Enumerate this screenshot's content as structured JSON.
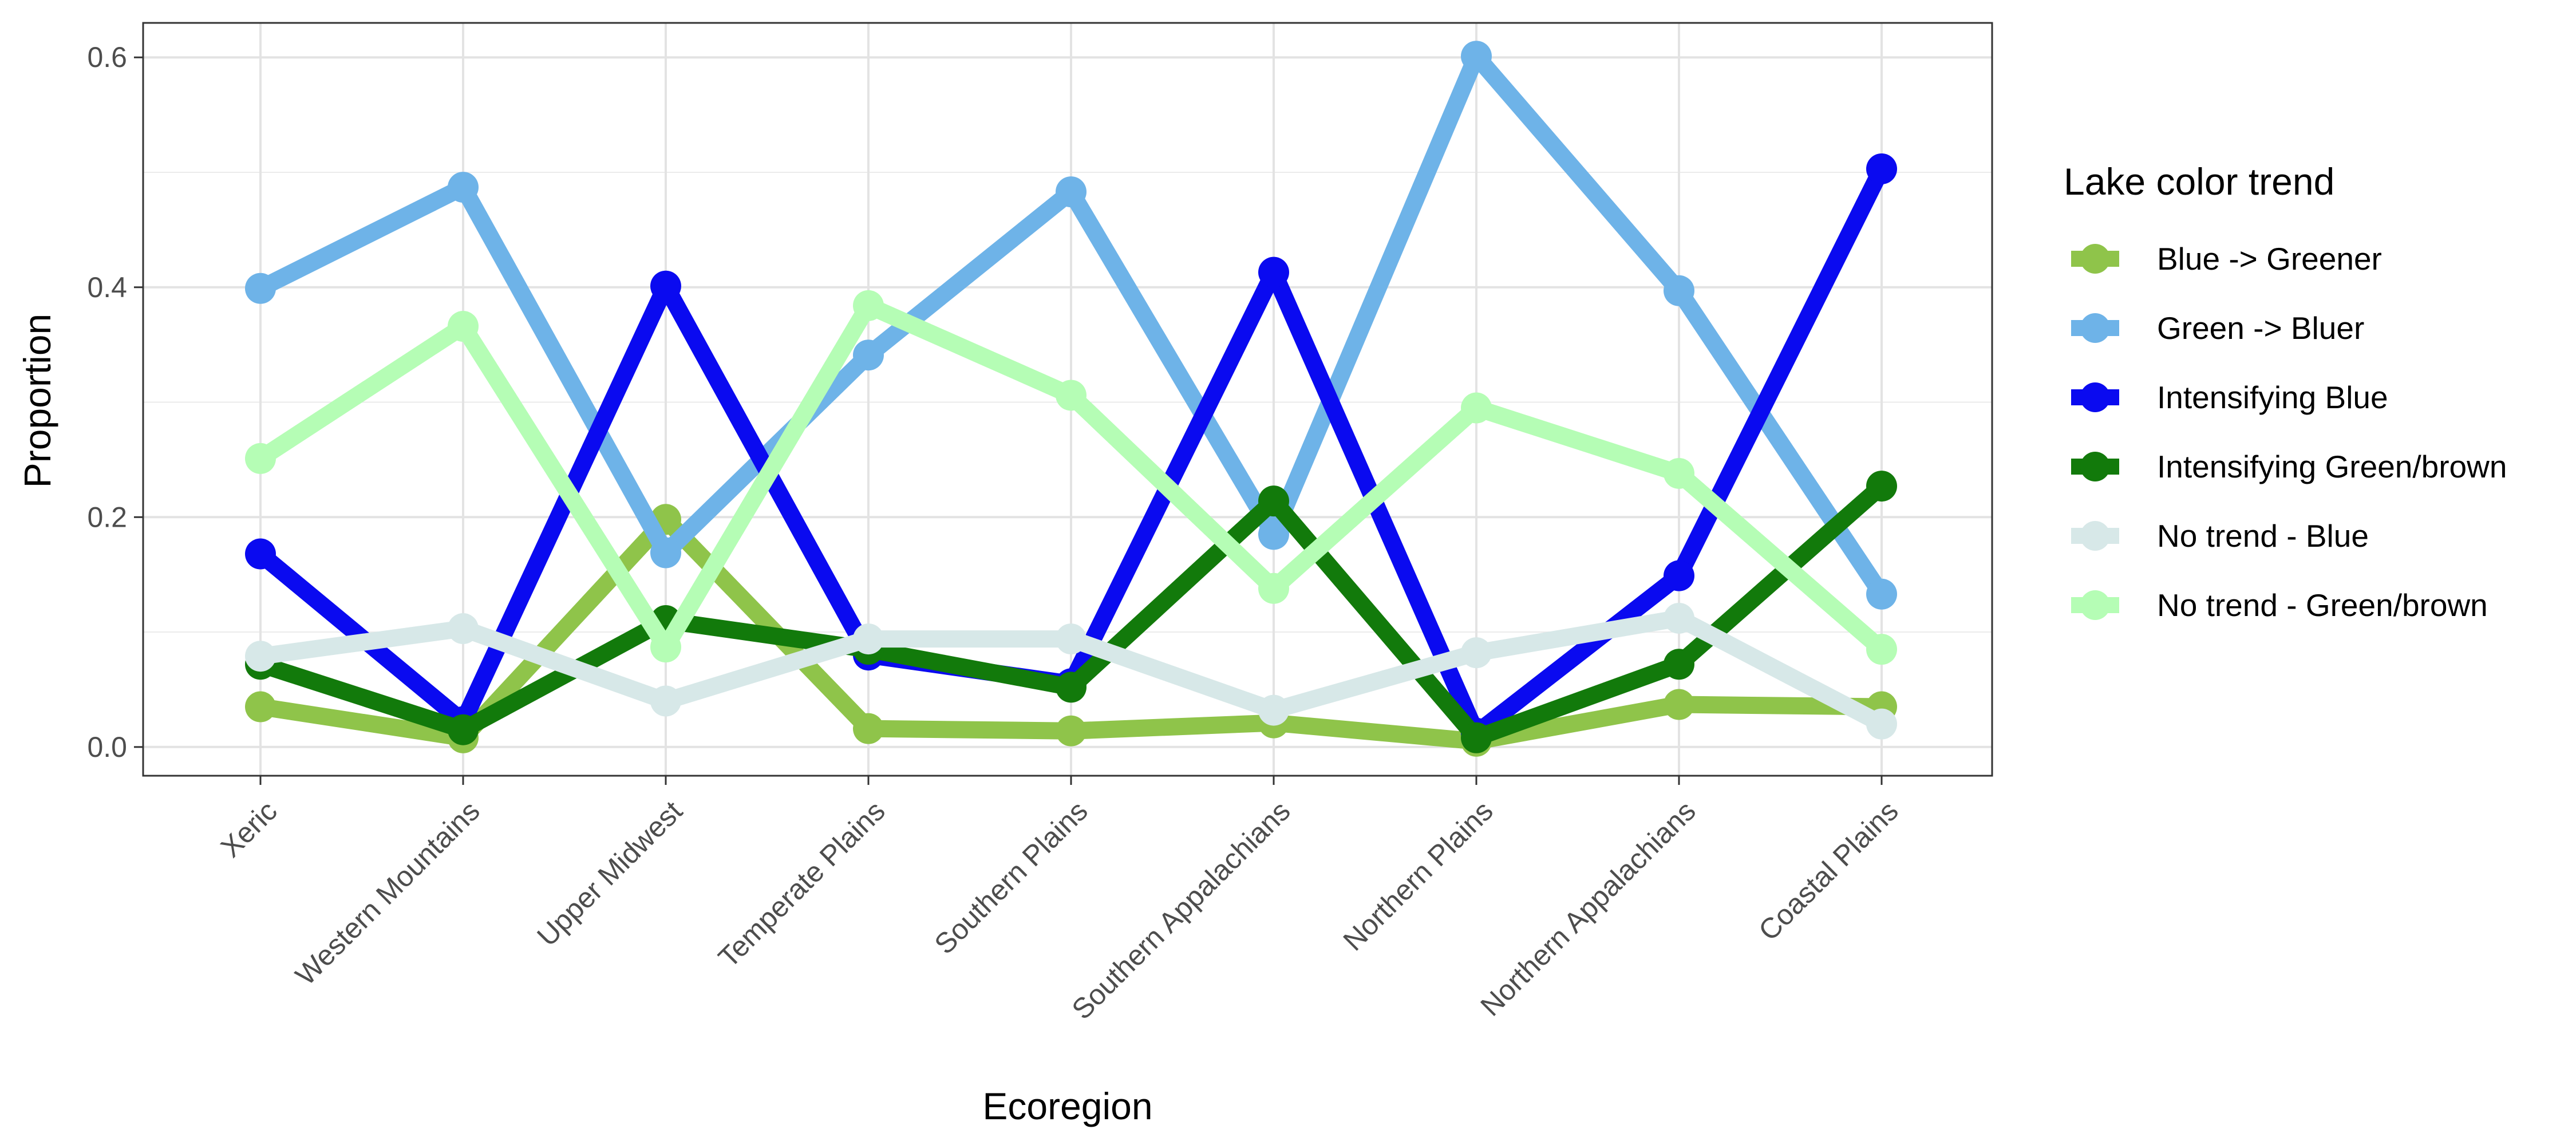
{
  "chart_data": {
    "type": "line",
    "xlabel": "Ecoregion",
    "ylabel": "Proportion",
    "categories": [
      "Xeric",
      "Western Mountains",
      "Upper Midwest",
      "Temperate Plains",
      "Southern Plains",
      "Southern Appalachians",
      "Northern Plains",
      "Northern Appalachians",
      "Coastal Plains"
    ],
    "ylim": [
      -0.025,
      0.63
    ],
    "yticks": [
      0.0,
      0.2,
      0.4,
      0.6
    ],
    "ytick_labels": [
      "0.0",
      "0.2",
      "0.4",
      "0.6"
    ],
    "grid": true,
    "legend_title": "Lake color trend",
    "legend_position": "right",
    "series": [
      {
        "name": "Blue -> Greener",
        "color": "#8fc44a",
        "values": [
          0.035,
          0.008,
          0.198,
          0.016,
          0.014,
          0.021,
          0.005,
          0.037,
          0.035
        ]
      },
      {
        "name": "Green -> Bluer",
        "color": "#6eb3e8",
        "values": [
          0.399,
          0.487,
          0.169,
          0.341,
          0.483,
          0.185,
          0.601,
          0.397,
          0.133
        ]
      },
      {
        "name": "Intensifying Blue",
        "color": "#0a0af0",
        "values": [
          0.168,
          0.022,
          0.401,
          0.08,
          0.055,
          0.413,
          0.012,
          0.149,
          0.503
        ]
      },
      {
        "name": "Intensifying Green/brown",
        "color": "#127a0b",
        "values": [
          0.072,
          0.015,
          0.11,
          0.085,
          0.052,
          0.214,
          0.008,
          0.072,
          0.227
        ]
      },
      {
        "name": "No trend - Blue",
        "color": "#d7e8e8",
        "values": [
          0.079,
          0.103,
          0.04,
          0.094,
          0.094,
          0.032,
          0.082,
          0.112,
          0.02
        ]
      },
      {
        "name": "No trend - Green/brown",
        "color": "#b5fdb5",
        "values": [
          0.251,
          0.366,
          0.087,
          0.384,
          0.306,
          0.138,
          0.295,
          0.238,
          0.085
        ]
      }
    ]
  }
}
